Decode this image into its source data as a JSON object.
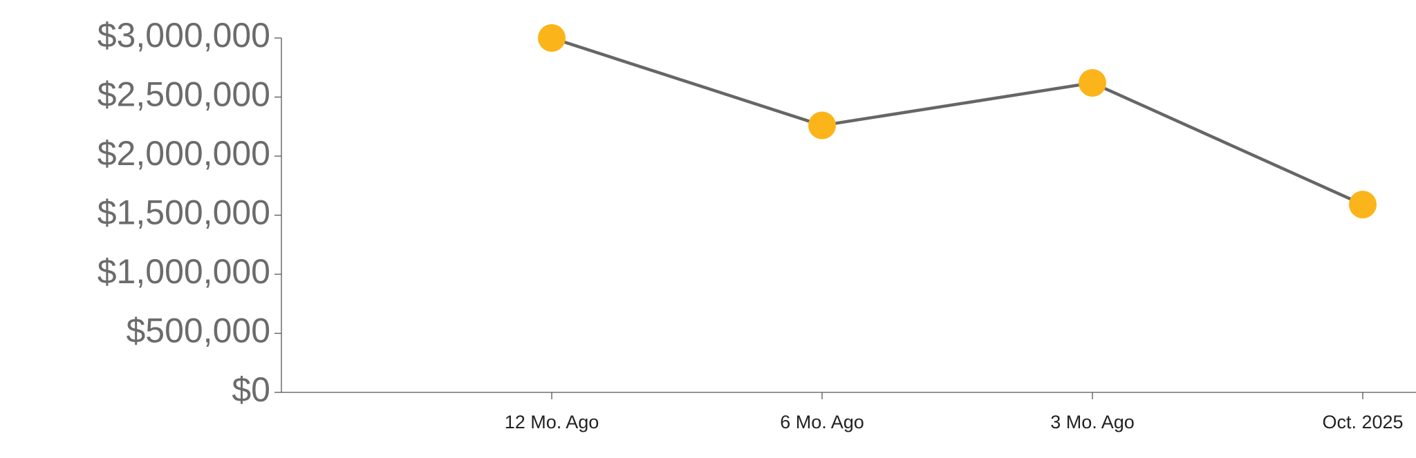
{
  "chart_data": {
    "type": "line",
    "categories": [
      "12 Mo. Ago",
      "6 Mo. Ago",
      "3 Mo. Ago",
      "Oct. 2025"
    ],
    "series": [
      {
        "values": [
          3000000,
          2260000,
          2620000,
          1590000
        ],
        "color": "#666666",
        "marker_color": "#fbb41a"
      }
    ],
    "ylim": [
      0,
      3000000
    ],
    "yticks": [
      {
        "value": 0,
        "label": "$0"
      },
      {
        "value": 500000,
        "label": "$500,000"
      },
      {
        "value": 1000000,
        "label": "$1,000,000"
      },
      {
        "value": 1500000,
        "label": "$1,500,000"
      },
      {
        "value": 2000000,
        "label": "$2,000,000"
      },
      {
        "value": 2500000,
        "label": "$2,500,000"
      },
      {
        "value": 3000000,
        "label": "$3,000,000"
      }
    ]
  }
}
